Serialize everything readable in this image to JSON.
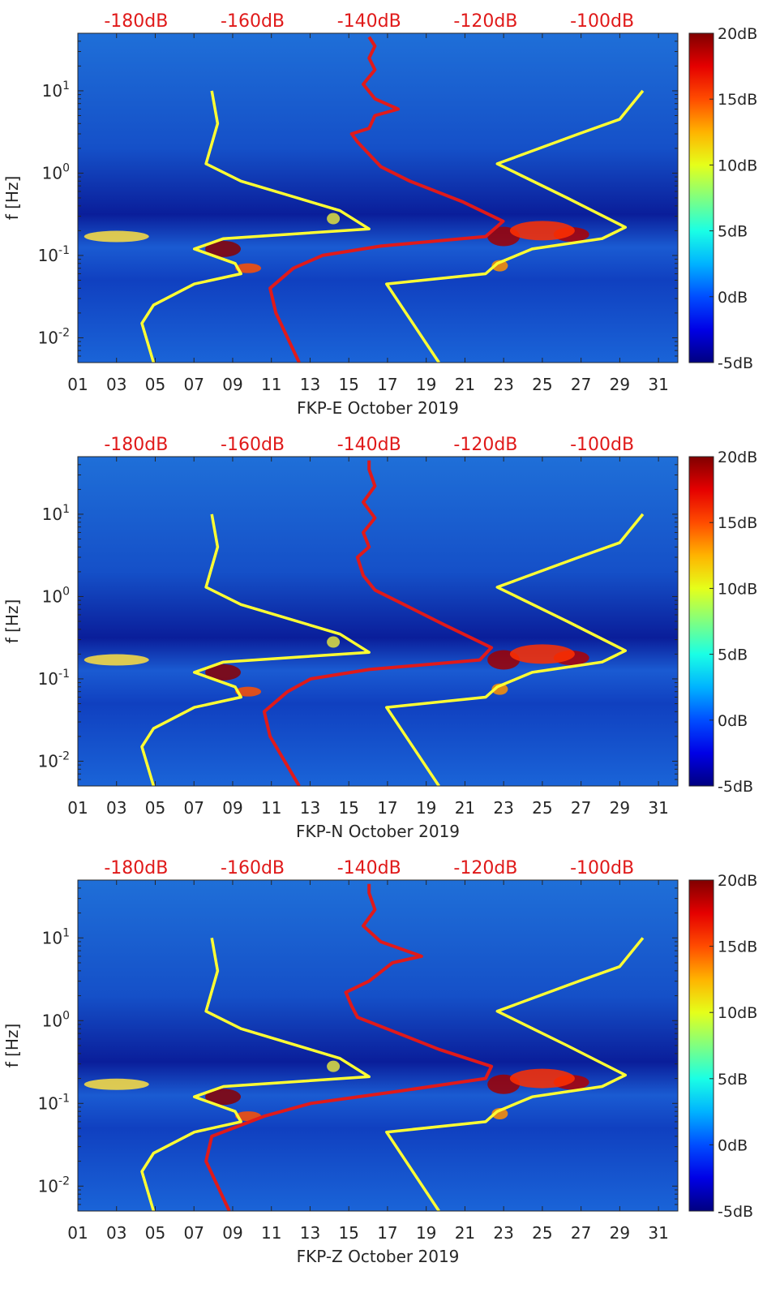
{
  "chart_data": [
    {
      "type": "heatmap",
      "title": "",
      "xlabel": "FKP-E October 2019",
      "ylabel": "f [Hz]",
      "x_ticks": [
        "01",
        "03",
        "05",
        "07",
        "09",
        "11",
        "13",
        "15",
        "17",
        "19",
        "21",
        "23",
        "25",
        "27",
        "29",
        "31"
      ],
      "x_tick_values": [
        1,
        3,
        5,
        7,
        9,
        11,
        13,
        15,
        17,
        19,
        21,
        23,
        25,
        27,
        29,
        31
      ],
      "xlim": [
        1,
        32
      ],
      "y_scale": "log",
      "ylim": [
        0.005,
        50
      ],
      "y_ticks": [
        {
          "base": "10",
          "exp": "-2",
          "value": 0.01
        },
        {
          "base": "10",
          "exp": "-1",
          "value": 0.1
        },
        {
          "base": "10",
          "exp": "0",
          "value": 1
        },
        {
          "base": "10",
          "exp": "1",
          "value": 10
        }
      ],
      "top_ticks": [
        "-180dB",
        "-160dB",
        "-140dB",
        "-120dB",
        "-100dB"
      ],
      "top_tick_values": [
        -180,
        -160,
        -140,
        -120,
        -100
      ],
      "top_xlim": [
        -190,
        -87
      ],
      "colorbar": {
        "ticks": [
          "20dB",
          "15dB",
          "10dB",
          "5dB",
          "0dB",
          "-5dB"
        ],
        "values": [
          20,
          15,
          10,
          5,
          0,
          -5
        ],
        "range": [
          -5,
          20
        ]
      },
      "series": [
        {
          "color": "#ffff33",
          "points": [
            [
              -177,
              0.005
            ],
            [
              -179,
              0.015
            ],
            [
              -177,
              0.025
            ],
            [
              -170,
              0.045
            ],
            [
              -162,
              0.06
            ],
            [
              -163,
              0.08
            ],
            [
              -170,
              0.12
            ],
            [
              -165,
              0.16
            ],
            [
              -140,
              0.21
            ],
            [
              -145,
              0.35
            ],
            [
              -162,
              0.8
            ],
            [
              -168,
              1.3
            ],
            [
              -166,
              4
            ],
            [
              -167,
              10
            ]
          ]
        },
        {
          "color": "#ffff33",
          "points": [
            [
              -128,
              0.005
            ],
            [
              -137,
              0.045
            ],
            [
              -120,
              0.06
            ],
            [
              -118,
              0.08
            ],
            [
              -112,
              0.12
            ],
            [
              -100,
              0.16
            ],
            [
              -96,
              0.22
            ],
            [
              -106,
              0.5
            ],
            [
              -118,
              1.3
            ],
            [
              -104,
              3
            ],
            [
              -97,
              4.5
            ],
            [
              -93,
              10
            ]
          ]
        },
        {
          "color": "#e01a1a",
          "points": [
            [
              -152,
              0.005
            ],
            [
              -156,
              0.02
            ],
            [
              -157,
              0.04
            ],
            [
              -153,
              0.07
            ],
            [
              -148,
              0.1
            ],
            [
              -138,
              0.13
            ],
            [
              -120,
              0.17
            ],
            [
              -117,
              0.26
            ],
            [
              -124,
              0.45
            ],
            [
              -133,
              0.8
            ],
            [
              -138,
              1.2
            ],
            [
              -140,
              1.7
            ],
            [
              -142,
              2.4
            ],
            [
              -143,
              3
            ],
            [
              -140,
              3.5
            ],
            [
              -139,
              5
            ],
            [
              -135,
              6
            ],
            [
              -139,
              8
            ],
            [
              -141,
              12
            ],
            [
              -139,
              18
            ],
            [
              -140,
              25
            ],
            [
              -139,
              35
            ],
            [
              -140,
              45
            ]
          ]
        }
      ]
    },
    {
      "type": "heatmap",
      "title": "",
      "xlabel": "FKP-N October 2019",
      "ylabel": "f [Hz]",
      "x_ticks": [
        "01",
        "03",
        "05",
        "07",
        "09",
        "11",
        "13",
        "15",
        "17",
        "19",
        "21",
        "23",
        "25",
        "27",
        "29",
        "31"
      ],
      "x_tick_values": [
        1,
        3,
        5,
        7,
        9,
        11,
        13,
        15,
        17,
        19,
        21,
        23,
        25,
        27,
        29,
        31
      ],
      "xlim": [
        1,
        32
      ],
      "y_scale": "log",
      "ylim": [
        0.005,
        50
      ],
      "y_ticks": [
        {
          "base": "10",
          "exp": "-2",
          "value": 0.01
        },
        {
          "base": "10",
          "exp": "-1",
          "value": 0.1
        },
        {
          "base": "10",
          "exp": "0",
          "value": 1
        },
        {
          "base": "10",
          "exp": "1",
          "value": 10
        }
      ],
      "top_ticks": [
        "-180dB",
        "-160dB",
        "-140dB",
        "-120dB",
        "-100dB"
      ],
      "top_tick_values": [
        -180,
        -160,
        -140,
        -120,
        -100
      ],
      "top_xlim": [
        -190,
        -87
      ],
      "colorbar": {
        "ticks": [
          "20dB",
          "15dB",
          "10dB",
          "5dB",
          "0dB",
          "-5dB"
        ],
        "values": [
          20,
          15,
          10,
          5,
          0,
          -5
        ],
        "range": [
          -5,
          20
        ]
      },
      "series": [
        {
          "color": "#ffff33",
          "points": [
            [
              -177,
              0.005
            ],
            [
              -179,
              0.015
            ],
            [
              -177,
              0.025
            ],
            [
              -170,
              0.045
            ],
            [
              -162,
              0.06
            ],
            [
              -163,
              0.08
            ],
            [
              -170,
              0.12
            ],
            [
              -165,
              0.16
            ],
            [
              -140,
              0.21
            ],
            [
              -145,
              0.35
            ],
            [
              -162,
              0.8
            ],
            [
              -168,
              1.3
            ],
            [
              -166,
              4
            ],
            [
              -167,
              10
            ]
          ]
        },
        {
          "color": "#ffff33",
          "points": [
            [
              -128,
              0.005
            ],
            [
              -137,
              0.045
            ],
            [
              -120,
              0.06
            ],
            [
              -118,
              0.08
            ],
            [
              -112,
              0.12
            ],
            [
              -100,
              0.16
            ],
            [
              -96,
              0.22
            ],
            [
              -106,
              0.5
            ],
            [
              -118,
              1.3
            ],
            [
              -104,
              3
            ],
            [
              -97,
              4.5
            ],
            [
              -93,
              10
            ]
          ]
        },
        {
          "color": "#e01a1a",
          "points": [
            [
              -152,
              0.005
            ],
            [
              -157,
              0.02
            ],
            [
              -158,
              0.04
            ],
            [
              -154,
              0.07
            ],
            [
              -150,
              0.1
            ],
            [
              -140,
              0.13
            ],
            [
              -121,
              0.17
            ],
            [
              -119,
              0.24
            ],
            [
              -127,
              0.45
            ],
            [
              -134,
              0.8
            ],
            [
              -139,
              1.2
            ],
            [
              -141,
              1.8
            ],
            [
              -142,
              3
            ],
            [
              -140,
              4
            ],
            [
              -141,
              6
            ],
            [
              -139,
              9
            ],
            [
              -141,
              14
            ],
            [
              -139,
              22
            ],
            [
              -140,
              35
            ],
            [
              -140,
              45
            ]
          ]
        }
      ]
    },
    {
      "type": "heatmap",
      "title": "",
      "xlabel": "FKP-Z October 2019",
      "ylabel": "f [Hz]",
      "x_ticks": [
        "01",
        "03",
        "05",
        "07",
        "09",
        "11",
        "13",
        "15",
        "17",
        "19",
        "21",
        "23",
        "25",
        "27",
        "29",
        "31"
      ],
      "x_tick_values": [
        1,
        3,
        5,
        7,
        9,
        11,
        13,
        15,
        17,
        19,
        21,
        23,
        25,
        27,
        29,
        31
      ],
      "xlim": [
        1,
        32
      ],
      "y_scale": "log",
      "ylim": [
        0.005,
        50
      ],
      "y_ticks": [
        {
          "base": "10",
          "exp": "-2",
          "value": 0.01
        },
        {
          "base": "10",
          "exp": "-1",
          "value": 0.1
        },
        {
          "base": "10",
          "exp": "0",
          "value": 1
        },
        {
          "base": "10",
          "exp": "1",
          "value": 10
        }
      ],
      "top_ticks": [
        "-180dB",
        "-160dB",
        "-140dB",
        "-120dB",
        "-100dB"
      ],
      "top_tick_values": [
        -180,
        -160,
        -140,
        -120,
        -100
      ],
      "top_xlim": [
        -190,
        -87
      ],
      "colorbar": {
        "ticks": [
          "20dB",
          "15dB",
          "10dB",
          "5dB",
          "0dB",
          "-5dB"
        ],
        "values": [
          20,
          15,
          10,
          5,
          0,
          -5
        ],
        "range": [
          -5,
          20
        ]
      },
      "series": [
        {
          "color": "#ffff33",
          "points": [
            [
              -177,
              0.005
            ],
            [
              -179,
              0.015
            ],
            [
              -177,
              0.025
            ],
            [
              -170,
              0.045
            ],
            [
              -162,
              0.06
            ],
            [
              -163,
              0.08
            ],
            [
              -170,
              0.12
            ],
            [
              -165,
              0.16
            ],
            [
              -140,
              0.21
            ],
            [
              -145,
              0.35
            ],
            [
              -162,
              0.8
            ],
            [
              -168,
              1.3
            ],
            [
              -166,
              4
            ],
            [
              -167,
              10
            ]
          ]
        },
        {
          "color": "#ffff33",
          "points": [
            [
              -128,
              0.005
            ],
            [
              -137,
              0.045
            ],
            [
              -120,
              0.06
            ],
            [
              -118,
              0.08
            ],
            [
              -112,
              0.12
            ],
            [
              -100,
              0.16
            ],
            [
              -96,
              0.22
            ],
            [
              -106,
              0.5
            ],
            [
              -118,
              1.3
            ],
            [
              -104,
              3
            ],
            [
              -97,
              4.5
            ],
            [
              -93,
              10
            ]
          ]
        },
        {
          "color": "#e01a1a",
          "points": [
            [
              -164,
              0.005
            ],
            [
              -168,
              0.02
            ],
            [
              -167,
              0.04
            ],
            [
              -158,
              0.07
            ],
            [
              -150,
              0.1
            ],
            [
              -135,
              0.14
            ],
            [
              -120,
              0.2
            ],
            [
              -119,
              0.28
            ],
            [
              -128,
              0.45
            ],
            [
              -137,
              0.8
            ],
            [
              -142,
              1.1
            ],
            [
              -143,
              1.5
            ],
            [
              -144,
              2.2
            ],
            [
              -140,
              3
            ],
            [
              -136,
              5
            ],
            [
              -131,
              6
            ],
            [
              -138,
              9
            ],
            [
              -141,
              14
            ],
            [
              -139,
              22
            ],
            [
              -140,
              35
            ],
            [
              -140,
              45
            ]
          ]
        }
      ]
    }
  ]
}
